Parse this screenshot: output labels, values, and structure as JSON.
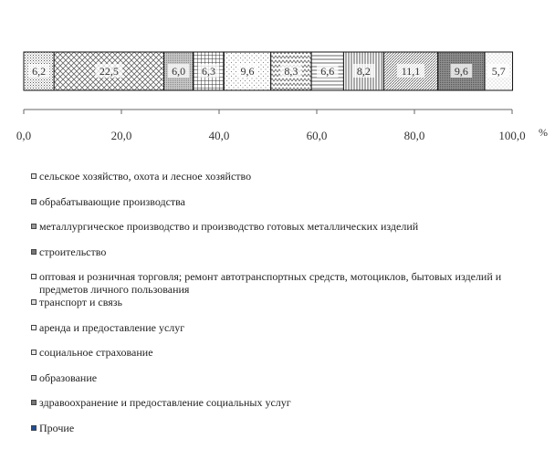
{
  "chart_data": {
    "type": "bar",
    "orientation": "horizontal",
    "stacked": true,
    "x_unit": "%",
    "xlim": [
      0,
      100
    ],
    "x_ticks": [
      "0,0",
      "20,0",
      "40,0",
      "60,0",
      "80,0",
      "100,0"
    ],
    "grid": false,
    "legend_placement": "bottom",
    "series": [
      {
        "name": "сельское хозяйство, охота и лесное хозяйство",
        "value": 6.2,
        "label": "6,2",
        "pattern": "dots-fine",
        "swatch_color": "#e6e6e6"
      },
      {
        "name": "обрабатывающие производства",
        "value": 22.5,
        "label": "22,5",
        "pattern": "diag-cross",
        "swatch_color": "#bbbbbb"
      },
      {
        "name": "металлургическое производство и производство готовых металлических изделий",
        "value": 6.0,
        "label": "6,0",
        "pattern": "gray-dense",
        "swatch_color": "#9a9a9a"
      },
      {
        "name": "строительство",
        "value": 6.3,
        "label": "6,3",
        "pattern": "grid",
        "swatch_color": "#777777"
      },
      {
        "name": "оптовая и розничная торговля; ремонт автотранспортных средств, мотоциклов, бытовых изделий и предметов личного пользования",
        "value": 9.6,
        "label": "9,6",
        "pattern": "dots-sparse",
        "swatch_color": "#f2f2f2"
      },
      {
        "name": "транспорт и связь",
        "value": 8.3,
        "label": "8,3",
        "pattern": "zigzag",
        "swatch_color": "#dddddd"
      },
      {
        "name": "аренда и предоставление услуг",
        "value": 6.6,
        "label": "6,6",
        "pattern": "horizontal",
        "swatch_color": "#f0f0f0"
      },
      {
        "name": "социальное страхование",
        "value": 8.2,
        "label": "8,2",
        "pattern": "vertical",
        "swatch_color": "#e8e8e8"
      },
      {
        "name": "образование",
        "value": 11.1,
        "label": "11,1",
        "pattern": "diag-fine",
        "swatch_color": "#d5d5d5"
      },
      {
        "name": "здравоохранение и предоставление социальных услуг",
        "value": 9.6,
        "label": "9,6",
        "pattern": "dark-dots",
        "swatch_color": "#777777"
      },
      {
        "name": "Прочие",
        "value": 5.7,
        "label": "5,7",
        "pattern": "dots-light",
        "swatch_color": "#1f4e9a"
      }
    ]
  }
}
